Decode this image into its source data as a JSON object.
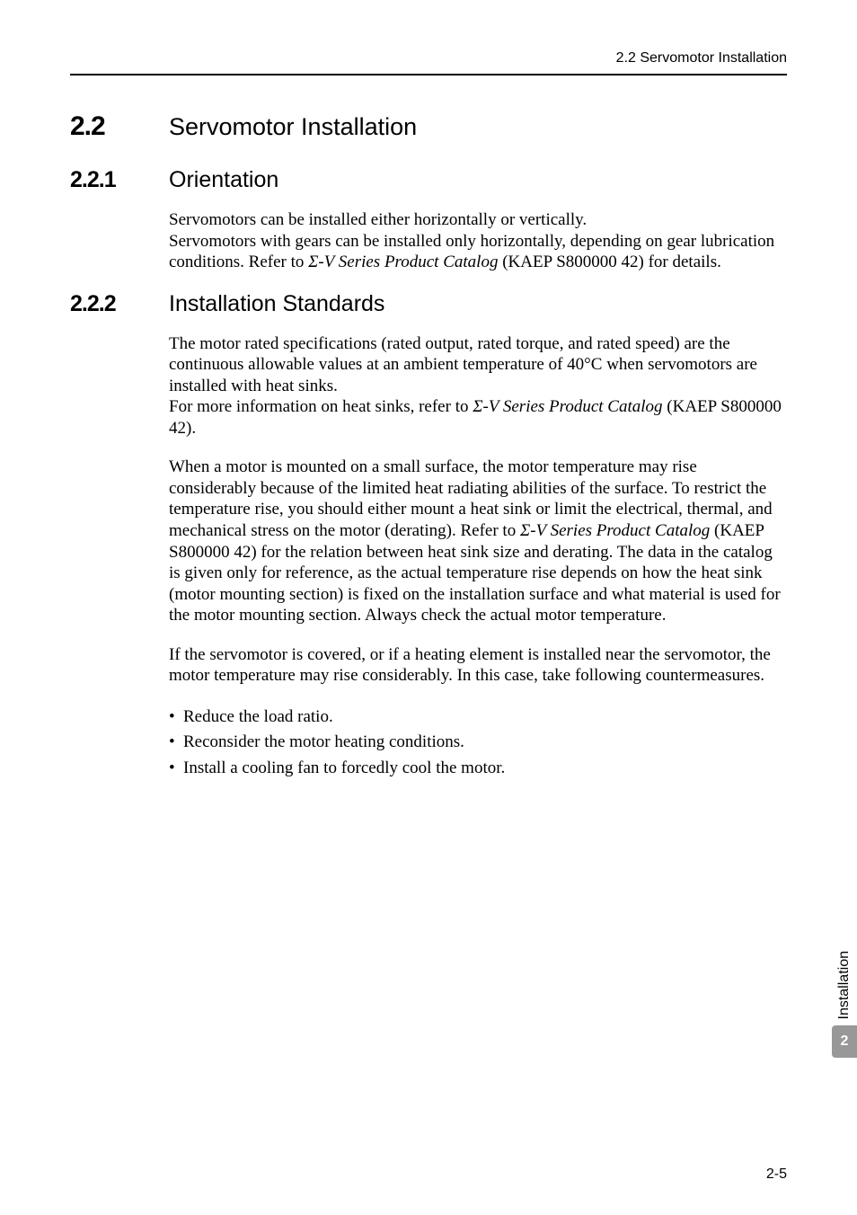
{
  "header": {
    "text": "2.2  Servomotor Installation"
  },
  "h2": {
    "num": "2.2",
    "title": "Servomotor Installation"
  },
  "s1": {
    "num": "2.2.1",
    "title": "Orientation",
    "p1a": "Servomotors can be installed either horizontally or vertically.",
    "p1b_a": "Servomotors with gears can be installed only horizontally, depending on gear lubrication conditions. Refer to ",
    "p1b_i": "Σ-V Series Product Catalog",
    "p1b_c": " (KAEP S800000 42) for details."
  },
  "s2": {
    "num": "2.2.2",
    "title": "Installation Standards",
    "p1": "The motor rated specifications (rated output, rated torque, and rated speed) are the continuous allowable values at an ambient temperature of 40°C when servomotors are installed with heat sinks.",
    "p1b_a": "For more information on heat sinks, refer to ",
    "p1b_i": "Σ-V Series Product Catalog",
    "p1b_c": " (KAEP S800000 42).",
    "p2_a": "When a motor is mounted on a small surface, the motor temperature may rise considerably because of the limited heat radiating abilities of the surface. To restrict the temperature rise, you should either mount a heat sink or limit the electrical, thermal, and mechanical stress on the motor (derating). Refer to ",
    "p2_i": "Σ-V Series Product Catalog",
    "p2_c": " (KAEP S800000 42) for the relation between heat sink size and derating. The data in the catalog is given only for reference, as the actual temperature rise depends on how the heat sink (motor mounting section) is fixed on the installation surface and what material is used for the motor mounting section. Always check the actual motor temperature.",
    "p3": "If the servomotor is covered, or if a heating element is installed near the servomotor, the motor temperature may rise considerably. In this case, take following countermeasures.",
    "bullets": {
      "b1": "Reduce the load ratio.",
      "b2": "Reconsider the motor heating conditions.",
      "b3": "Install a cooling fan to forcedly cool the motor."
    }
  },
  "sidebar": {
    "label": "Installation",
    "num": "2"
  },
  "footer": {
    "pagenum": "2-5"
  }
}
